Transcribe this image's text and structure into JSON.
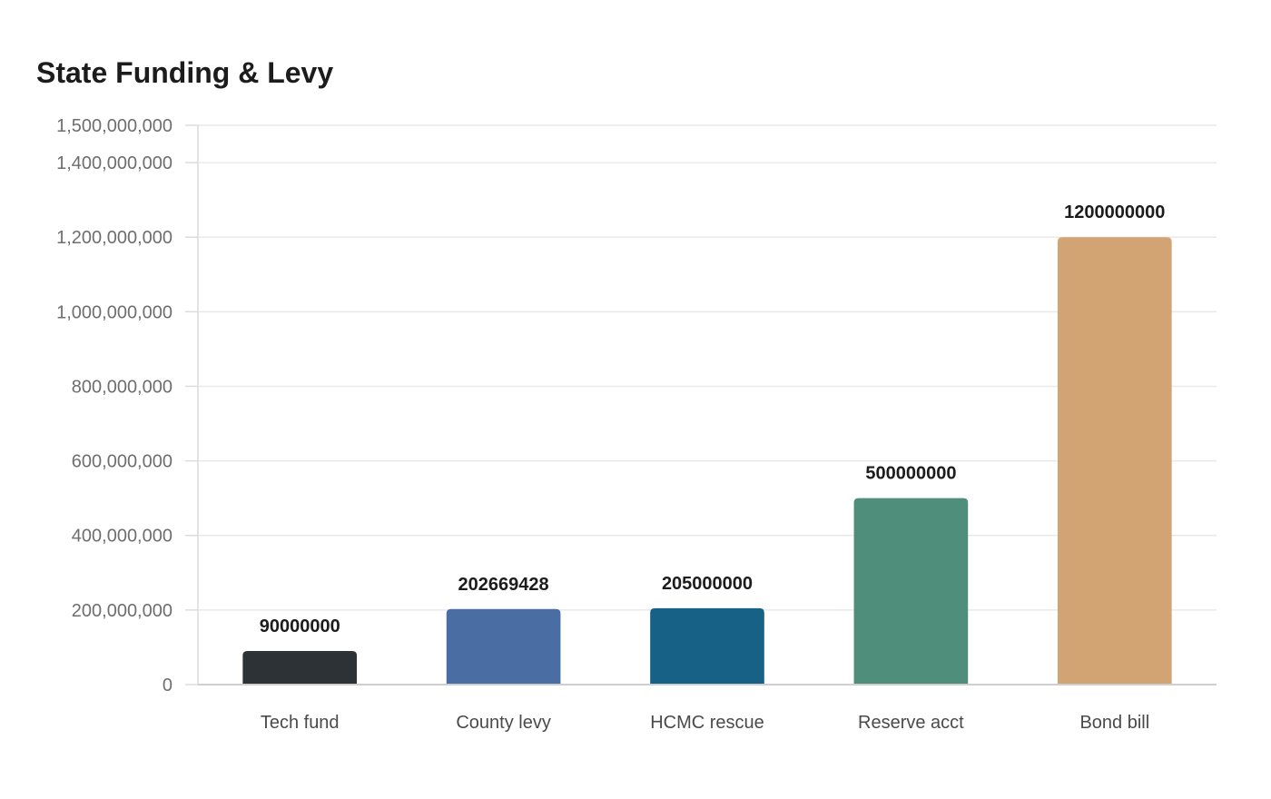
{
  "chart_data": {
    "type": "bar",
    "title": "State Funding & Levy",
    "xlabel": "",
    "ylabel": "",
    "categories": [
      "Tech fund",
      "County levy",
      "HCMC rescue",
      "Reserve acct",
      "Bond bill"
    ],
    "values": [
      90000000,
      202669428,
      205000000,
      500000000,
      1200000000
    ],
    "data_labels": [
      "90000000",
      "202669428",
      "205000000",
      "500000000",
      "1200000000"
    ],
    "colors": [
      "#2d3236",
      "#4a6ea4",
      "#186186",
      "#4e8e7b",
      "#d3a473"
    ],
    "ylim": [
      0,
      1500000000
    ],
    "yticks": [
      0,
      200000000,
      400000000,
      600000000,
      800000000,
      1000000000,
      1200000000,
      1400000000,
      1500000000
    ],
    "ytick_labels": [
      "0",
      "200,000,000",
      "400,000,000",
      "600,000,000",
      "800,000,000",
      "1,000,000,000",
      "1,200,000,000",
      "1,400,000,000",
      "1,500,000,000"
    ],
    "grid": true,
    "legend": "none"
  }
}
